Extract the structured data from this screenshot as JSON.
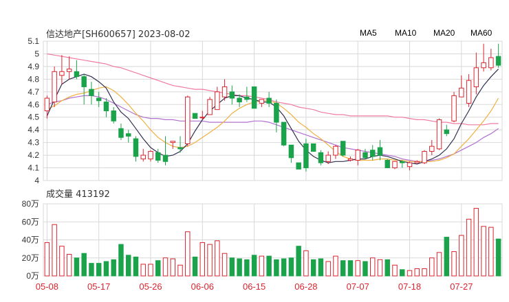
{
  "header": {
    "title": "信达地产[SH600657] 2023-08-02"
  },
  "legend": [
    {
      "name": "MA5",
      "color": "#2f2f4f"
    },
    {
      "name": "MA10",
      "color": "#f0b040"
    },
    {
      "name": "MA20",
      "color": "#b070d0"
    },
    {
      "name": "MA60",
      "color": "#f07aa0"
    }
  ],
  "colors": {
    "up": "#d9232e",
    "down": "#1aa34a",
    "grid": "#d8d8d8",
    "axis": "#999999"
  },
  "volume_label": "成交量 413192",
  "chart_data": [
    {
      "type": "candlestick",
      "title": "信达地产[SH600657] 2023-08-02",
      "ylim": [
        4.0,
        5.1
      ],
      "y_ticks": [
        "5.1",
        "5",
        "4.9",
        "4.8",
        "4.7",
        "4.6",
        "4.5",
        "4.4",
        "4.3",
        "4.2",
        "4.1",
        "4"
      ],
      "x_ticks": [
        {
          "label": "05-08",
          "index": 0
        },
        {
          "label": "05-17",
          "index": 7
        },
        {
          "label": "05-26",
          "index": 14
        },
        {
          "label": "06-06",
          "index": 21
        },
        {
          "label": "06-15",
          "index": 28
        },
        {
          "label": "06-28",
          "index": 35
        },
        {
          "label": "07-07",
          "index": 42
        },
        {
          "label": "07-18",
          "index": 49
        },
        {
          "label": "07-27",
          "index": 56
        }
      ],
      "candles": [
        [
          4.55,
          4.65,
          4.67,
          4.49
        ],
        [
          4.62,
          4.86,
          4.9,
          4.58
        ],
        [
          4.83,
          4.86,
          4.99,
          4.76
        ],
        [
          4.86,
          4.88,
          4.98,
          4.8
        ],
        [
          4.86,
          4.82,
          4.95,
          4.8
        ],
        [
          4.82,
          4.74,
          4.84,
          4.6
        ],
        [
          4.72,
          4.67,
          4.78,
          4.6
        ],
        [
          4.65,
          4.63,
          4.7,
          4.58
        ],
        [
          4.62,
          4.55,
          4.65,
          4.5
        ],
        [
          4.55,
          4.47,
          4.58,
          4.45
        ],
        [
          4.41,
          4.34,
          4.45,
          4.32
        ],
        [
          4.37,
          4.35,
          4.4,
          4.3
        ],
        [
          4.33,
          4.19,
          4.35,
          4.15
        ],
        [
          4.17,
          4.2,
          4.25,
          4.15
        ],
        [
          4.17,
          4.23,
          4.24,
          4.15
        ],
        [
          4.22,
          4.16,
          4.25,
          4.14
        ],
        [
          4.2,
          4.15,
          4.35,
          4.12
        ],
        [
          4.3,
          4.31,
          4.31,
          4.25
        ],
        [
          4.26,
          4.25,
          4.35,
          4.22
        ],
        [
          4.29,
          4.66,
          4.67,
          4.27
        ],
        [
          4.53,
          4.49,
          4.53,
          4.49
        ],
        [
          4.5,
          4.5,
          4.55,
          4.48
        ],
        [
          4.52,
          4.64,
          4.66,
          4.52
        ],
        [
          4.56,
          4.7,
          4.74,
          4.56
        ],
        [
          4.66,
          4.74,
          4.8,
          4.63
        ],
        [
          4.7,
          4.65,
          4.75,
          4.6
        ],
        [
          4.65,
          4.62,
          4.68,
          4.58
        ],
        [
          4.66,
          4.64,
          4.74,
          4.62
        ],
        [
          4.74,
          4.57,
          4.74,
          4.57
        ],
        [
          4.61,
          4.64,
          4.64,
          4.58
        ],
        [
          4.65,
          4.61,
          4.7,
          4.58
        ],
        [
          4.61,
          4.46,
          4.64,
          4.38
        ],
        [
          4.46,
          4.28,
          4.46,
          4.27
        ],
        [
          4.28,
          4.18,
          4.28,
          4.14
        ],
        [
          4.14,
          4.09,
          4.14,
          4.09
        ],
        [
          4.29,
          4.1,
          4.33,
          4.07
        ],
        [
          4.29,
          4.23,
          4.29,
          4.23
        ],
        [
          4.22,
          4.14,
          4.24,
          4.12
        ],
        [
          4.15,
          4.2,
          4.23,
          4.13
        ],
        [
          4.2,
          4.27,
          4.28,
          4.17
        ],
        [
          4.31,
          4.2,
          4.31,
          4.19
        ],
        [
          4.16,
          4.17,
          4.19,
          4.15
        ],
        [
          4.16,
          4.24,
          4.25,
          4.12
        ],
        [
          4.22,
          4.18,
          4.25,
          4.17
        ],
        [
          4.24,
          4.19,
          4.28,
          4.16
        ],
        [
          4.26,
          4.2,
          4.32,
          4.16
        ],
        [
          4.16,
          4.1,
          4.17,
          4.1
        ],
        [
          4.1,
          4.15,
          4.15,
          4.09
        ],
        [
          4.15,
          4.14,
          4.16,
          4.1
        ],
        [
          4.11,
          4.14,
          4.15,
          4.08
        ],
        [
          4.14,
          4.15,
          4.16,
          4.14
        ],
        [
          4.14,
          4.23,
          4.24,
          4.13
        ],
        [
          4.23,
          4.27,
          4.32,
          4.2
        ],
        [
          4.25,
          4.48,
          4.49,
          4.24
        ],
        [
          4.4,
          4.37,
          4.44,
          4.35
        ],
        [
          4.47,
          4.67,
          4.7,
          4.46
        ],
        [
          4.66,
          4.73,
          4.83,
          4.66
        ],
        [
          4.61,
          4.79,
          4.84,
          4.58
        ],
        [
          4.74,
          4.89,
          5.01,
          4.68
        ],
        [
          4.89,
          4.93,
          5.08,
          4.86
        ],
        [
          4.89,
          4.97,
          5.04,
          4.87
        ],
        [
          4.98,
          4.91,
          5.08,
          4.89
        ]
      ],
      "series": [
        {
          "name": "MA5",
          "values": [
            4.51,
            4.64,
            4.76,
            4.8,
            4.82,
            4.84,
            4.82,
            4.78,
            4.73,
            4.62,
            4.54,
            4.49,
            4.41,
            4.33,
            4.26,
            4.22,
            4.19,
            4.2,
            4.23,
            4.29,
            4.39,
            4.48,
            4.55,
            4.6,
            4.65,
            4.67,
            4.67,
            4.65,
            4.64,
            4.62,
            4.62,
            4.58,
            4.51,
            4.41,
            4.31,
            4.24,
            4.19,
            4.16,
            4.14,
            4.15,
            4.15,
            4.16,
            4.17,
            4.17,
            4.19,
            4.2,
            4.19,
            4.17,
            4.15,
            4.14,
            4.13,
            4.15,
            4.17,
            4.2,
            4.25,
            4.33,
            4.45,
            4.55,
            4.66,
            4.75,
            4.82,
            4.88
          ]
        },
        {
          "name": "MA10",
          "values": [
            4.56,
            4.59,
            4.63,
            4.66,
            4.68,
            4.69,
            4.71,
            4.73,
            4.74,
            4.71,
            4.66,
            4.6,
            4.53,
            4.47,
            4.4,
            4.34,
            4.3,
            4.27,
            4.26,
            4.27,
            4.3,
            4.34,
            4.38,
            4.42,
            4.47,
            4.53,
            4.57,
            4.6,
            4.62,
            4.63,
            4.63,
            4.61,
            4.57,
            4.52,
            4.46,
            4.42,
            4.37,
            4.33,
            4.28,
            4.23,
            4.19,
            4.17,
            4.16,
            4.16,
            4.16,
            4.17,
            4.17,
            4.16,
            4.16,
            4.15,
            4.15,
            4.15,
            4.15,
            4.16,
            4.18,
            4.21,
            4.27,
            4.33,
            4.4,
            4.47,
            4.55,
            4.65
          ]
        },
        {
          "name": "MA20",
          "values": [
            4.6,
            4.62,
            4.63,
            4.65,
            4.66,
            4.67,
            4.67,
            4.66,
            4.64,
            4.61,
            4.58,
            4.55,
            4.52,
            4.5,
            4.49,
            4.49,
            4.48,
            4.48,
            4.47,
            4.47,
            4.47,
            4.47,
            4.46,
            4.46,
            4.46,
            4.46,
            4.46,
            4.46,
            4.47,
            4.47,
            4.46,
            4.44,
            4.42,
            4.4,
            4.38,
            4.36,
            4.34,
            4.32,
            4.3,
            4.28,
            4.26,
            4.25,
            4.24,
            4.23,
            4.22,
            4.21,
            4.2,
            4.19,
            4.17,
            4.16,
            4.15,
            4.15,
            4.16,
            4.17,
            4.19,
            4.21,
            4.24,
            4.27,
            4.3,
            4.34,
            4.37,
            4.41
          ]
        },
        {
          "name": "MA60",
          "values": [
            5.0,
            4.99,
            4.98,
            4.97,
            4.96,
            4.95,
            4.94,
            4.93,
            4.92,
            4.9,
            4.89,
            4.87,
            4.85,
            4.83,
            4.81,
            4.79,
            4.77,
            4.75,
            4.74,
            4.73,
            4.72,
            4.72,
            4.71,
            4.7,
            4.69,
            4.68,
            4.67,
            4.67,
            4.66,
            4.65,
            4.64,
            4.62,
            4.61,
            4.6,
            4.58,
            4.57,
            4.56,
            4.54,
            4.53,
            4.52,
            4.52,
            4.51,
            4.51,
            4.51,
            4.51,
            4.51,
            4.51,
            4.5,
            4.5,
            4.49,
            4.48,
            4.48,
            4.47,
            4.46,
            4.46,
            4.45,
            4.45,
            4.44,
            4.44,
            4.44,
            4.45,
            4.45
          ]
        }
      ]
    },
    {
      "type": "bar",
      "title": "成交量 413192",
      "unit": "万",
      "ylim": [
        0,
        80
      ],
      "y_ticks": [
        "80万",
        "60万",
        "40万",
        "20万",
        "0万"
      ],
      "values": [
        37,
        57,
        33,
        24,
        20,
        25,
        14,
        14,
        16,
        18,
        35,
        23,
        21,
        13,
        13,
        17,
        20,
        19,
        12,
        49,
        21,
        37,
        35,
        39,
        25,
        20,
        19,
        18,
        23,
        22,
        22,
        18,
        19,
        20,
        33,
        28,
        18,
        19,
        16,
        22,
        17,
        17,
        17,
        16,
        20,
        18,
        18,
        12,
        7,
        6,
        8,
        8,
        20,
        26,
        43,
        27,
        45,
        63,
        75,
        55,
        54,
        41
      ],
      "up": [
        1,
        1,
        1,
        1,
        0,
        0,
        0,
        0,
        0,
        0,
        0,
        0,
        0,
        1,
        1,
        0,
        1,
        1,
        1,
        1,
        0,
        1,
        1,
        1,
        1,
        0,
        0,
        0,
        0,
        1,
        0,
        0,
        0,
        0,
        0,
        1,
        0,
        0,
        1,
        1,
        0,
        0,
        1,
        0,
        1,
        1,
        0,
        1,
        0,
        1,
        1,
        1,
        1,
        1,
        0,
        1,
        1,
        1,
        1,
        1,
        1,
        0
      ]
    }
  ]
}
